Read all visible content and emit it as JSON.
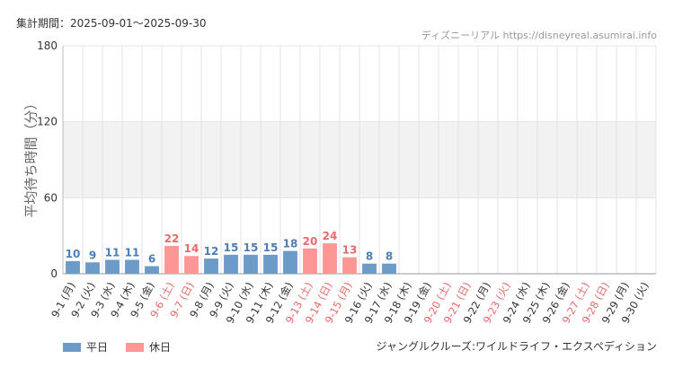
{
  "header": {
    "period": "集計期間：2025-09-01〜2025-09-30",
    "credit": "ディズニーリアル https://disneyreal.asumirai.info"
  },
  "footer": {
    "attraction": "ジャングルクルーズ:ワイルドライフ・エクスペディション"
  },
  "colors": {
    "weekday": "#6c9bc8",
    "holiday": "#ff9696",
    "weekday_text": "#4a7fb5",
    "holiday_text": "#e86a6a",
    "band": "#f2f2f2",
    "grid": "#e3e3e3"
  },
  "chart_data": {
    "type": "bar",
    "ylabel": "平均待ち時間（分）",
    "ylim": [
      0,
      180
    ],
    "yticks": [
      0,
      60,
      120,
      180
    ],
    "band": [
      60,
      120
    ],
    "legend": [
      {
        "key": "weekday",
        "label": "平日"
      },
      {
        "key": "holiday",
        "label": "休日"
      }
    ],
    "categories": [
      "9-1 (月)",
      "9-2 (火)",
      "9-3 (水)",
      "9-4 (木)",
      "9-5 (金)",
      "9-6 (土)",
      "9-7 (日)",
      "9-8 (月)",
      "9-9 (火)",
      "9-10 (水)",
      "9-11 (木)",
      "9-12 (金)",
      "9-13 (土)",
      "9-14 (日)",
      "9-15 (月)",
      "9-16 (火)",
      "9-17 (水)",
      "9-18 (木)",
      "9-19 (金)",
      "9-20 (土)",
      "9-21 (日)",
      "9-22 (月)",
      "9-23 (火)",
      "9-24 (水)",
      "9-25 (木)",
      "9-26 (金)",
      "9-27 (土)",
      "9-28 (日)",
      "9-29 (月)",
      "9-30 (火)"
    ],
    "day_type": [
      "weekday",
      "weekday",
      "weekday",
      "weekday",
      "weekday",
      "holiday",
      "holiday",
      "weekday",
      "weekday",
      "weekday",
      "weekday",
      "weekday",
      "holiday",
      "holiday",
      "holiday",
      "weekday",
      "weekday",
      "weekday",
      "weekday",
      "holiday",
      "holiday",
      "weekday",
      "holiday",
      "weekday",
      "weekday",
      "weekday",
      "holiday",
      "holiday",
      "weekday",
      "weekday"
    ],
    "values": [
      10,
      9,
      11,
      11,
      6,
      22,
      14,
      12,
      15,
      15,
      15,
      18,
      20,
      24,
      13,
      8,
      8,
      null,
      null,
      null,
      null,
      null,
      null,
      null,
      null,
      null,
      null,
      null,
      null,
      null
    ]
  }
}
